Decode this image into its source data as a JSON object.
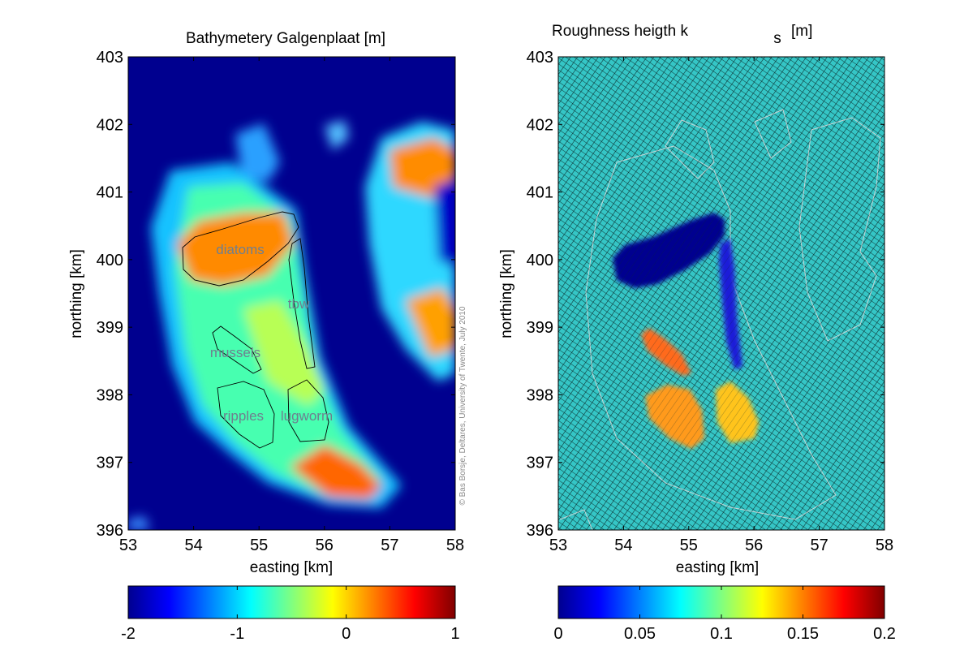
{
  "chart_data": [
    {
      "type": "heatmap",
      "title": "Bathymetery Galgenplaat [m]",
      "xlabel": "easting [km]",
      "ylabel": "northing [km]",
      "xlim": [
        53,
        58
      ],
      "ylim": [
        396,
        403
      ],
      "xticks": [
        "53",
        "54",
        "55",
        "56",
        "57",
        "58"
      ],
      "yticks": [
        "396",
        "397",
        "398",
        "399",
        "400",
        "401",
        "402",
        "403"
      ],
      "colorbar": {
        "range": [
          -2,
          1
        ],
        "ticks": [
          "-2",
          "-1",
          "0",
          "1"
        ],
        "colormap": "jet"
      },
      "annotations": [
        {
          "text": "diatoms",
          "x": 54.8,
          "y": 400.15
        },
        {
          "text": "tbw",
          "x": 55.75,
          "y": 399.4
        },
        {
          "text": "mussels",
          "x": 54.9,
          "y": 398.65
        },
        {
          "text": "ripples",
          "x": 54.6,
          "y": 397.75
        },
        {
          "text": "lugworm",
          "x": 55.55,
          "y": 397.75
        }
      ],
      "credit": "© Bas Borsje, Deltares, University of Twente, July 2010"
    },
    {
      "type": "heatmap",
      "title": "Roughness heigth k",
      "title_subscript": "s",
      "title_unit": "[m]",
      "xlabel": "easting [km]",
      "ylabel": "northing [km]",
      "xlim": [
        53,
        58
      ],
      "ylim": [
        396,
        403
      ],
      "xticks": [
        "53",
        "54",
        "55",
        "56",
        "57",
        "58"
      ],
      "yticks": [
        "396",
        "397",
        "398",
        "399",
        "400",
        "401",
        "402",
        "403"
      ],
      "colorbar": {
        "range": [
          0,
          0.2
        ],
        "ticks": [
          "0",
          "0.05",
          "0.1",
          "0.15",
          "0.2"
        ],
        "colormap": "jet"
      },
      "background_value": 0.08,
      "patches": [
        {
          "region": "diatoms",
          "value": 0.0
        },
        {
          "region": "tbw",
          "value": 0.01
        },
        {
          "region": "mussels",
          "value": 0.16
        },
        {
          "region": "ripples",
          "value": 0.14
        },
        {
          "region": "lugworm",
          "value": 0.12
        }
      ],
      "computational_grid": true
    }
  ],
  "colors": {
    "jet": [
      "#00008f",
      "#0000ff",
      "#0080ff",
      "#00ffff",
      "#80ff80",
      "#ffff00",
      "#ff8000",
      "#ff0000",
      "#800000"
    ],
    "grid_background": "#35c6c6",
    "contour_dark": "#000000",
    "contour_light": "#d8d8d8"
  }
}
